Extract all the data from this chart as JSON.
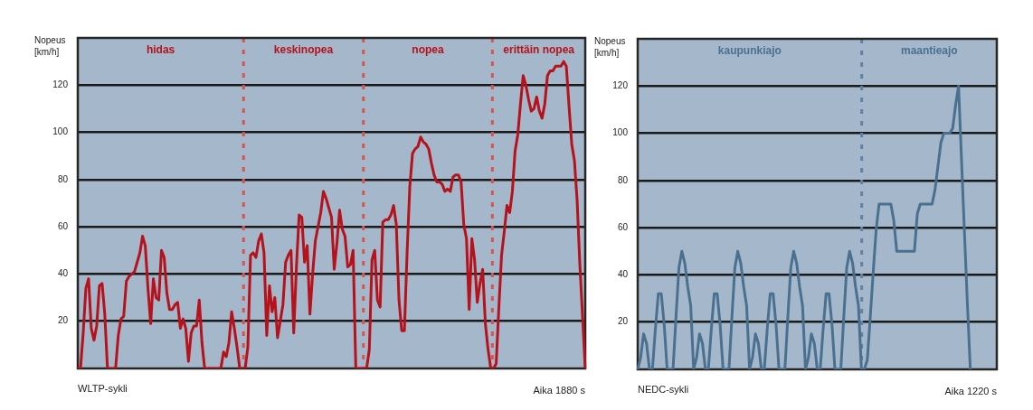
{
  "chart_data": [
    {
      "type": "line",
      "title": "WLTP-sykli",
      "xlabel": "Aika 1880 s",
      "ylabel": "Nopeus [km/h]",
      "ylim": [
        0,
        140
      ],
      "yticks": [
        20,
        40,
        60,
        80,
        100,
        120
      ],
      "grid": "y",
      "legend": false,
      "marker": "none",
      "line_style": "solid",
      "tick_labels": "y",
      "annotations": [
        "hidas",
        "keskinopea",
        "nopea",
        "erittäin nopea"
      ],
      "categories": [
        null,
        null,
        null,
        null,
        null,
        null,
        null,
        null,
        null,
        null,
        null,
        null,
        null,
        null,
        null,
        null,
        null,
        null,
        null,
        null,
        null,
        null,
        null,
        null,
        null,
        null,
        null,
        null,
        null,
        null,
        null,
        null,
        null,
        null,
        null,
        null,
        null,
        null,
        null,
        null,
        null,
        null,
        null,
        null,
        null,
        null,
        null,
        null,
        null,
        null,
        null,
        null,
        null,
        null,
        null,
        null,
        null,
        null,
        null,
        null,
        null,
        null,
        null,
        null,
        null,
        null,
        null,
        null,
        null,
        null,
        null,
        null,
        null,
        null,
        null,
        null,
        null,
        null,
        null,
        null,
        null,
        null,
        null,
        null,
        null,
        null,
        null,
        null,
        null,
        null,
        null,
        null,
        null,
        null,
        null,
        null,
        null,
        null,
        null,
        null,
        null,
        null,
        null,
        null,
        null,
        null,
        null,
        null,
        null,
        null,
        null,
        null,
        null,
        null,
        null,
        null,
        null,
        null,
        null,
        null,
        null,
        null,
        null,
        null,
        null,
        null,
        null,
        null,
        null,
        null,
        null,
        null,
        null,
        null,
        null,
        null,
        null,
        null,
        null,
        null,
        null,
        null,
        null,
        null,
        null,
        null,
        null,
        null,
        null,
        null,
        null,
        null,
        null,
        null,
        null,
        null,
        null,
        null,
        null,
        null,
        null,
        null,
        null,
        null,
        null,
        null,
        null,
        null,
        null,
        null,
        null,
        null,
        null,
        null,
        null,
        null,
        null,
        null,
        null,
        null,
        null,
        null,
        null,
        null,
        null,
        null,
        null,
        null,
        null
      ],
      "series": [
        {
          "color": "#b5121b",
          "values": [
            0,
            0,
            15,
            34,
            38,
            17,
            12,
            18,
            35,
            36,
            23,
            0,
            0,
            0,
            0,
            14,
            21,
            22,
            37,
            39,
            40,
            41,
            45,
            49,
            56,
            52,
            34,
            19,
            38,
            30,
            29,
            50,
            47,
            32,
            25,
            25,
            27,
            28,
            17,
            21,
            17,
            3,
            15,
            18,
            18,
            29,
            11,
            0,
            0,
            0,
            0,
            0,
            0,
            0,
            7,
            5,
            11,
            24,
            17,
            9,
            0,
            0,
            0,
            9,
            48,
            49,
            47,
            54,
            57,
            49,
            14,
            35,
            24,
            30,
            13,
            20,
            27,
            45,
            48,
            50,
            15,
            43,
            65,
            64,
            45,
            52,
            23,
            40,
            54,
            60,
            66,
            75,
            72,
            68,
            64,
            42,
            53,
            67,
            59,
            56,
            43,
            44,
            50,
            0,
            0,
            0,
            0,
            0,
            8,
            46,
            50,
            29,
            26,
            62,
            63,
            63,
            65,
            69,
            61,
            29,
            16,
            16,
            49,
            77,
            91,
            93,
            94,
            98,
            96,
            95,
            93,
            87,
            82,
            79,
            79,
            78,
            75,
            76,
            75,
            81,
            82,
            82,
            79,
            61,
            55,
            25,
            55,
            46,
            28,
            36,
            42,
            19,
            8,
            0,
            0,
            2,
            26,
            48,
            58,
            69,
            66,
            75,
            92,
            99,
            112,
            124,
            120,
            114,
            109,
            110,
            115,
            109,
            106,
            112,
            124,
            126,
            126,
            128,
            128,
            128,
            130,
            128,
            111,
            95,
            88,
            71,
            44,
            22,
            0
          ]
        }
      ]
    },
    {
      "type": "line",
      "title": "NEDC-sykli",
      "xlabel": "Aika 1220 s",
      "ylabel": "Nopeus [km/h]",
      "ylim": [
        0,
        140
      ],
      "yticks": [
        20,
        40,
        60,
        80,
        100,
        120
      ],
      "grid": "y",
      "legend": false,
      "marker": "none",
      "line_style": "solid",
      "tick_labels": "y",
      "annotations": [
        "kaupunkiajo",
        "maantieajo"
      ],
      "categories": [
        null,
        null,
        null,
        null,
        null,
        null,
        null,
        null,
        null,
        null,
        null,
        null,
        null,
        null,
        null,
        null,
        null,
        null,
        null,
        null,
        null,
        null,
        null,
        null,
        null,
        null,
        null,
        null,
        null,
        null,
        null,
        null,
        null,
        null,
        null,
        null,
        null,
        null,
        null,
        null,
        null,
        null,
        null,
        null,
        null,
        null,
        null,
        null,
        null,
        null,
        null,
        null,
        null,
        null,
        null,
        null,
        null,
        null,
        null,
        null,
        null,
        null,
        null,
        null,
        null,
        null,
        null,
        null,
        null,
        null,
        null,
        null,
        null,
        null,
        null,
        null,
        null,
        null,
        null,
        null,
        null,
        null,
        null,
        null,
        null,
        null,
        null,
        null,
        null,
        null,
        null,
        null,
        null,
        null,
        null,
        null,
        null,
        null,
        null,
        null,
        null,
        null,
        null,
        null,
        null,
        null,
        null,
        null,
        null,
        null,
        null,
        null,
        null,
        null,
        null,
        null,
        null,
        null,
        null,
        null,
        null,
        null,
        null
      ],
      "series": [
        {
          "color": "#4a7090",
          "values": [
            0,
            5,
            15,
            11,
            0,
            0,
            17,
            32,
            32,
            19,
            0,
            0,
            0,
            22,
            43,
            50,
            45,
            35,
            27,
            0,
            5,
            15,
            11,
            0,
            0,
            17,
            32,
            32,
            19,
            0,
            0,
            0,
            22,
            43,
            50,
            45,
            35,
            27,
            0,
            5,
            15,
            11,
            0,
            0,
            17,
            32,
            32,
            19,
            0,
            0,
            0,
            22,
            43,
            50,
            45,
            35,
            27,
            0,
            5,
            15,
            11,
            0,
            0,
            17,
            32,
            32,
            19,
            0,
            0,
            0,
            22,
            43,
            50,
            45,
            35,
            27,
            0,
            0,
            4,
            22,
            41,
            59,
            70,
            70,
            70,
            70,
            70,
            63,
            50,
            50,
            50,
            50,
            50,
            50,
            50,
            66,
            70,
            70,
            70,
            70,
            70,
            76,
            86,
            96,
            100,
            100,
            100,
            102,
            112,
            120,
            89,
            58,
            28,
            0,
            null,
            null,
            null,
            null,
            null,
            null,
            null,
            null,
            null
          ]
        }
      ]
    }
  ]
}
